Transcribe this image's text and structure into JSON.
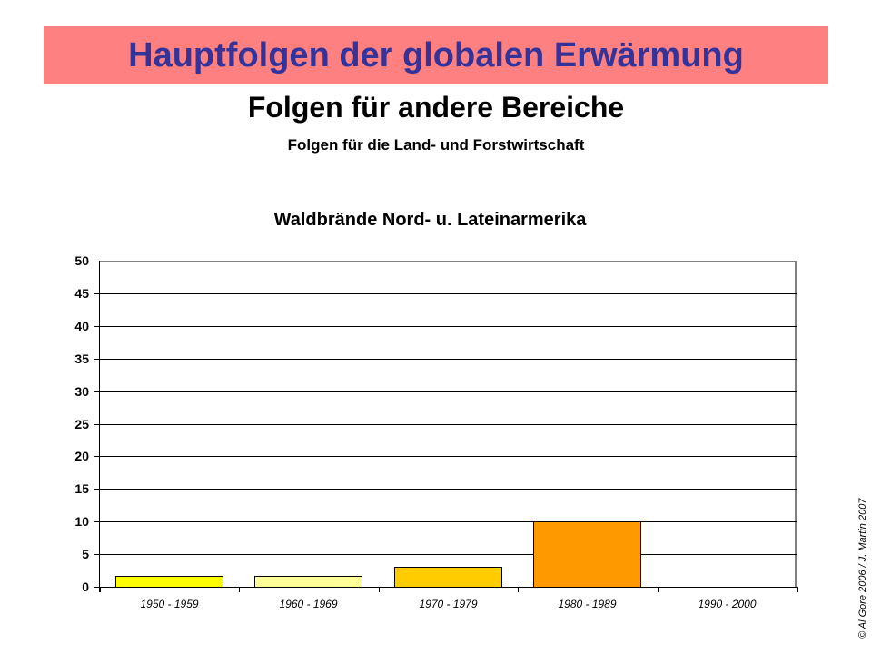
{
  "header": {
    "banner_title": "Hauptfolgen der globalen Erwärmung",
    "subtitle": "Folgen für andere Bereiche",
    "subsubtitle": "Folgen für die Land- und Forstwirtschaft"
  },
  "footer": {
    "copyright": "© Al Gore 2006 / J. Martin 2007"
  },
  "colors": {
    "banner_bg": "#ff8080",
    "banner_text": "#333399",
    "bar_1950": "#ffff00",
    "bar_1960": "#ffff99",
    "bar_1970": "#ffcc00",
    "bar_1980": "#ff9900"
  },
  "chart_data": {
    "type": "bar",
    "title": "Waldbrände Nord- u. Lateinarmerika",
    "xlabel": "",
    "ylabel": "",
    "categories": [
      "1950 - 1959",
      "1960 - 1969",
      "1970 - 1979",
      "1980 - 1989",
      "1990 - 2000"
    ],
    "values": [
      1.7,
      1.7,
      3.1,
      10,
      0
    ],
    "bar_colors": [
      "#ffff00",
      "#ffff99",
      "#ffcc00",
      "#ff9900",
      "#ffffff"
    ],
    "ylim": [
      0,
      50
    ],
    "yticks": [
      "0",
      "5",
      "10",
      "15",
      "20",
      "25",
      "30",
      "35",
      "40",
      "45",
      "50"
    ],
    "grid": true,
    "legend": "none"
  }
}
